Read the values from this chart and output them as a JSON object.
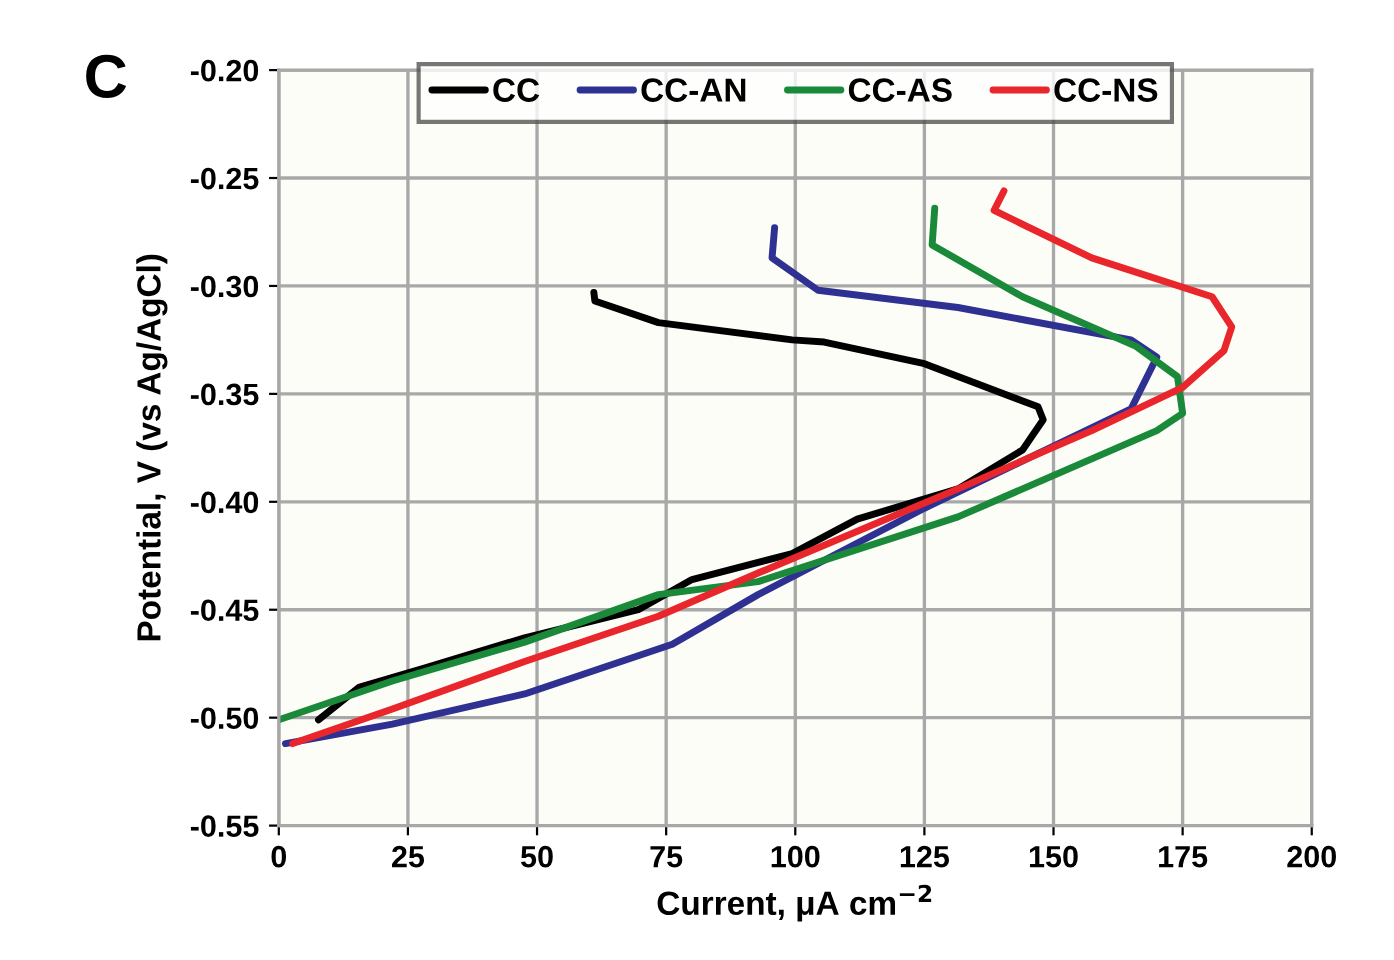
{
  "chart_data": {
    "type": "line",
    "xlabel": "Current, μA cm$^{−2}$",
    "ylabel": "Potential, V (vs Ag/AgCl)",
    "annotations": [
      "C"
    ],
    "xlim": [
      0,
      200
    ],
    "xticks": [
      0,
      25,
      50,
      75,
      100,
      125,
      150,
      175,
      200
    ],
    "ylim": [
      -0.55,
      -0.2
    ],
    "yticks": [
      {
        "value": -0.55,
        "label": "-0.55"
      },
      {
        "value": -0.5,
        "label": "-0.50"
      },
      {
        "value": -0.45,
        "label": "-0.45"
      },
      {
        "value": -0.4,
        "label": "-0.40"
      },
      {
        "value": -0.35,
        "label": "-0.35"
      },
      {
        "value": -0.3,
        "label": "-0.30"
      },
      {
        "value": -0.25,
        "label": "-0.25"
      },
      {
        "value": -0.2,
        "label": "-0.20"
      }
    ],
    "grid": true,
    "legend": "top",
    "line_style": "solid",
    "marker": "none",
    "series": [
      {
        "name": "CC",
        "color": "#000000",
        "x": [
          61,
          61.2,
          73.5,
          99.4,
          105.6,
          125,
          147,
          148,
          144,
          131.5,
          112,
          99.4,
          80,
          69.6,
          47.6,
          28.2,
          15.5,
          7.7
        ],
        "values": [
          -0.303,
          -0.307,
          -0.317,
          -0.325,
          -0.326,
          -0.336,
          -0.356,
          -0.362,
          -0.376,
          -0.394,
          -0.408,
          -0.424,
          -0.436,
          -0.45,
          -0.463,
          -0.477,
          -0.486,
          -0.501
        ]
      },
      {
        "name": "CC-AN",
        "color": "#2e3192",
        "x": [
          96,
          95.5,
          104.4,
          131.5,
          165,
          170,
          165,
          151,
          125,
          92.8,
          76.2,
          47.6,
          22,
          1.3
        ],
        "values": [
          -0.273,
          -0.287,
          -0.302,
          -0.31,
          -0.325,
          -0.333,
          -0.357,
          -0.373,
          -0.403,
          -0.443,
          -0.466,
          -0.489,
          -0.503,
          -0.512
        ]
      },
      {
        "name": "CC-AS",
        "color": "#1a8a3a",
        "x": [
          127,
          126.5,
          144,
          166,
          174,
          175,
          170,
          131.5,
          92.8,
          73.5,
          47.6,
          22,
          0
        ],
        "values": [
          -0.264,
          -0.281,
          -0.305,
          -0.328,
          -0.342,
          -0.359,
          -0.367,
          -0.407,
          -0.437,
          -0.443,
          -0.465,
          -0.483,
          -0.501
        ]
      },
      {
        "name": "CC-NS",
        "color": "#e8262b",
        "x": [
          140.4,
          138.5,
          157.4,
          180.7,
          184.5,
          183,
          175,
          157.4,
          131.5,
          92.8,
          73.5,
          47.6,
          22,
          2.7
        ],
        "values": [
          -0.256,
          -0.265,
          -0.287,
          -0.305,
          -0.319,
          -0.33,
          -0.347,
          -0.367,
          -0.394,
          -0.433,
          -0.453,
          -0.474,
          -0.496,
          -0.512
        ]
      }
    ]
  }
}
